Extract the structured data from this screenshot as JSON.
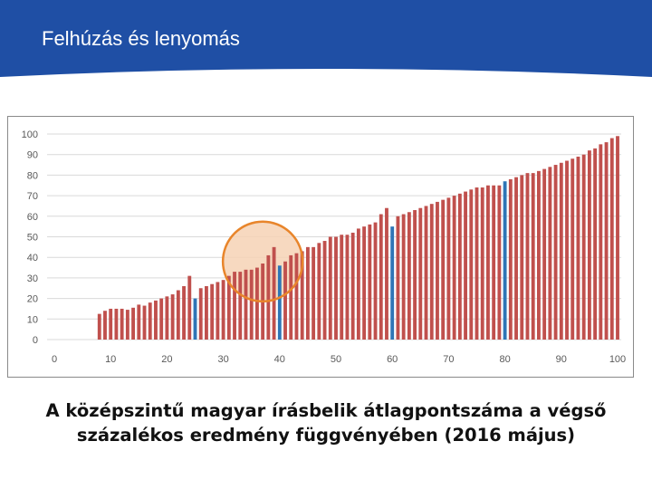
{
  "header": {
    "title": "Felhúzás és lenyomás",
    "color": "#1f4fa5"
  },
  "caption": {
    "line1": "A középszintű magyar írásbelik átlagpontszáma a végső",
    "line2": "százalékos eredmény függvényében (2016 május)"
  },
  "chart_data": {
    "type": "bar",
    "title": "",
    "xlabel": "",
    "ylabel": "",
    "xlim": [
      0,
      100
    ],
    "ylim": [
      0,
      100
    ],
    "x_ticks": [
      0,
      10,
      20,
      30,
      40,
      50,
      60,
      70,
      80,
      90,
      100
    ],
    "y_ticks": [
      0,
      10,
      20,
      30,
      40,
      50,
      60,
      70,
      80,
      90,
      100
    ],
    "grid": "horizontal",
    "bar_color": "#c0504d",
    "highlight_color": "#2e75b6",
    "highlighted_x": [
      25,
      40,
      60,
      80
    ],
    "annotation": {
      "shape": "circle",
      "center": [
        37,
        38
      ],
      "color": "#e8852b",
      "fill": "#f6d2b5"
    },
    "x": [
      8,
      9,
      10,
      11,
      12,
      13,
      14,
      15,
      16,
      17,
      18,
      19,
      20,
      21,
      22,
      23,
      24,
      25,
      26,
      27,
      28,
      29,
      30,
      31,
      32,
      33,
      34,
      35,
      36,
      37,
      38,
      39,
      40,
      41,
      42,
      43,
      44,
      45,
      46,
      47,
      48,
      49,
      50,
      51,
      52,
      53,
      54,
      55,
      56,
      57,
      58,
      59,
      60,
      61,
      62,
      63,
      64,
      65,
      66,
      67,
      68,
      69,
      70,
      71,
      72,
      73,
      74,
      75,
      76,
      77,
      78,
      79,
      80,
      81,
      82,
      83,
      84,
      85,
      86,
      87,
      88,
      89,
      90,
      91,
      92,
      93,
      94,
      95,
      96,
      97,
      98,
      99,
      100
    ],
    "values": [
      12.5,
      14,
      15,
      15,
      15,
      14.5,
      15.5,
      17,
      16.5,
      18,
      19,
      20,
      21,
      22,
      24,
      26,
      31,
      20,
      25,
      26,
      27,
      28,
      29,
      31,
      33,
      33,
      34,
      34,
      35,
      37,
      41,
      45,
      36,
      38,
      41,
      42,
      43,
      45,
      45,
      47,
      48,
      50,
      50,
      51,
      51,
      52,
      54,
      55,
      56,
      57,
      61,
      64,
      55,
      60,
      61,
      62,
      63,
      64,
      65,
      66,
      67,
      68,
      69,
      70,
      71,
      72,
      73,
      74,
      74,
      75,
      75,
      75,
      77,
      78,
      79,
      80,
      81,
      81,
      82,
      83,
      84,
      85,
      86,
      87,
      88,
      89,
      90,
      92,
      93,
      95,
      96,
      98,
      99
    ]
  }
}
